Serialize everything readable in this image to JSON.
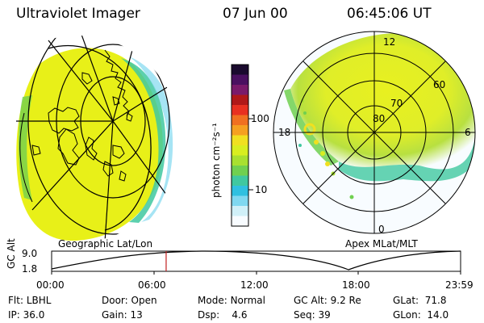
{
  "header": {
    "instrument": "Ultraviolet Imager",
    "date": "07 Jun 00",
    "time": "06:45:06 UT"
  },
  "panels": {
    "left_label": "Geographic Lat/Lon",
    "right_label": "Apex MLat/MLT"
  },
  "polar_plot": {
    "lat_labels": [
      "80",
      "70",
      "60"
    ],
    "mlt_labels": [
      "12",
      "18",
      "6",
      "0"
    ]
  },
  "colorbar": {
    "unit_label": "photon cm⁻²s⁻¹",
    "tick_labels": [
      "100",
      "10"
    ],
    "colors": [
      "#1a0a2e",
      "#4a1060",
      "#7a1a6a",
      "#b01818",
      "#e83020",
      "#f07020",
      "#f5a020",
      "#f0e020",
      "#d8ee20",
      "#a8e030",
      "#70d050",
      "#40c8a0",
      "#30c0e0",
      "#80d8f0",
      "#d0f0f8",
      "#f8fcff"
    ]
  },
  "timeline": {
    "axis_label": "GC Alt",
    "y_labels": [
      "9.0",
      "1.8"
    ],
    "x_labels": [
      "00:00",
      "06:00",
      "12:00",
      "18:00",
      "23:59"
    ],
    "current_marker": 0.28
  },
  "status": {
    "row1": [
      {
        "label": "Flt:",
        "value": "LBHL"
      },
      {
        "label": "Door:",
        "value": "Open"
      },
      {
        "label": "Mode:",
        "value": "Normal"
      },
      {
        "label": "GC Alt:",
        "value": "9.2 Re"
      },
      {
        "label": "GLat:",
        "value": "71.8"
      }
    ],
    "row2": [
      {
        "label": "IP:",
        "value": "36.0"
      },
      {
        "label": "Gain:",
        "value": "13"
      },
      {
        "label": "Dsp:",
        "value": "4.6"
      },
      {
        "label": "Seq:",
        "value": "39"
      },
      {
        "label": "GLon:",
        "value": "14.0"
      }
    ]
  }
}
